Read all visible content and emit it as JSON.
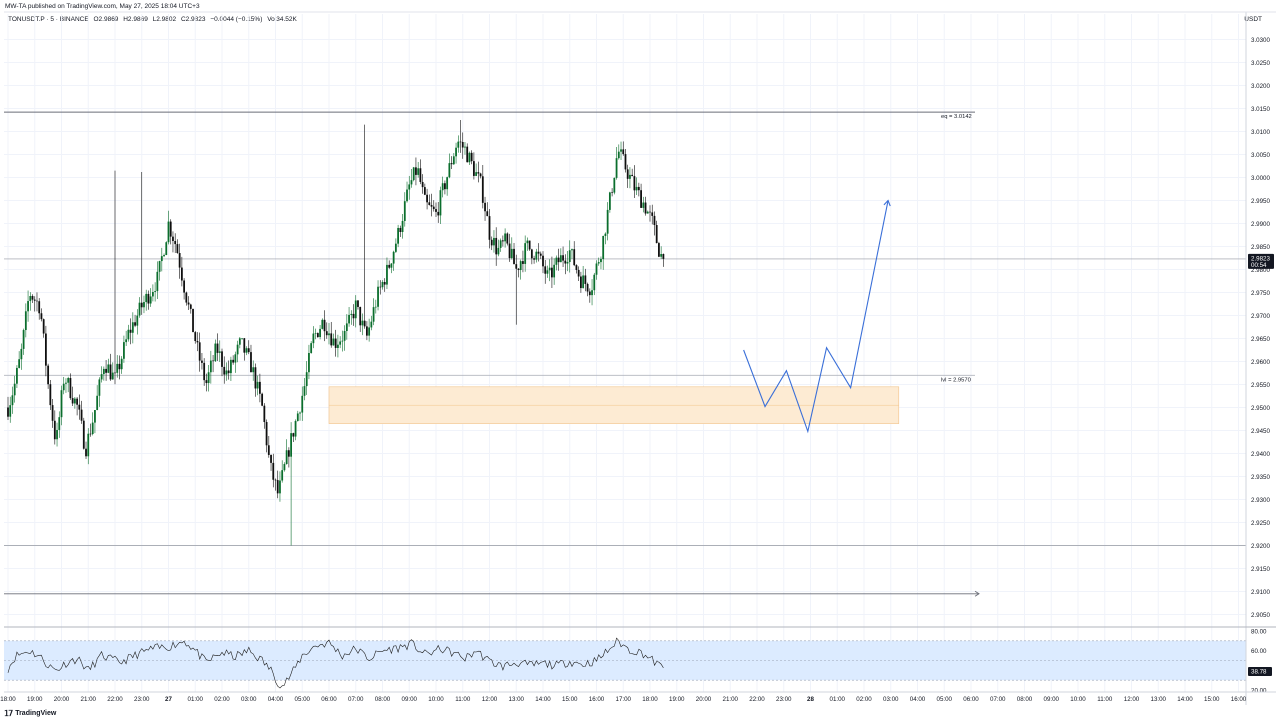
{
  "header": {
    "publisher": "MW-TA published on TradingView.com, May 27, 2025 18:04 UTC+3",
    "symbol": "TONUSDT.P · 5 · BINANCE",
    "open": "O2.9869",
    "high": "H2.9869",
    "low": "L2.9802",
    "close": "C2.9823",
    "change": "−0.0044 (−0.15%)",
    "volume": "Vol34.52K",
    "currency": "USDT"
  },
  "footer": {
    "logo_text": "TradingView"
  },
  "colors": {
    "up": "#0b6e2d",
    "down": "#0f0f0f",
    "rsi_band": "#dcebff",
    "projection": "#3a6fd8",
    "zone": "#fdebd3"
  },
  "chart_data": {
    "type": "candlestick",
    "price_axis": {
      "ticks": [
        "3.0300",
        "3.0250",
        "3.0200",
        "3.0150",
        "3.0100",
        "3.0050",
        "3.0000",
        "2.9950",
        "2.9900",
        "2.9850",
        "2.9800",
        "2.9750",
        "2.9700",
        "2.9650",
        "2.9600",
        "2.9550",
        "2.9500",
        "2.9450",
        "2.9400",
        "2.9350",
        "2.9300",
        "2.9250",
        "2.9200",
        "2.9150",
        "2.9100",
        "2.9050"
      ],
      "range": [
        2.9025,
        3.0325
      ],
      "current_price": "2.9823",
      "countdown": "00:54"
    },
    "time_axis": {
      "ticks": [
        "18:00",
        "19:00",
        "20:00",
        "21:00",
        "22:00",
        "23:00",
        "27",
        "01:00",
        "02:00",
        "03:00",
        "04:00",
        "05:00",
        "06:00",
        "07:00",
        "08:00",
        "09:00",
        "10:00",
        "11:00",
        "12:00",
        "13:00",
        "14:00",
        "15:00",
        "16:00",
        "17:00",
        "18:00",
        "19:00",
        "20:00",
        "21:00",
        "22:00",
        "23:00",
        "28",
        "01:00",
        "02:00",
        "03:00",
        "04:00",
        "05:00",
        "06:00",
        "07:00",
        "08:00",
        "09:00",
        "10:00",
        "11:00",
        "12:00",
        "13:00",
        "14:00",
        "15:00",
        "16:00"
      ],
      "bold": [
        "27",
        "28"
      ]
    },
    "price_keypoints": [
      [
        0,
        2.95
      ],
      [
        0.25,
        2.955
      ],
      [
        0.5,
        2.962
      ],
      [
        0.8,
        2.975
      ],
      [
        1.2,
        2.972
      ],
      [
        1.5,
        2.955
      ],
      [
        1.8,
        2.942
      ],
      [
        2.1,
        2.957
      ],
      [
        2.6,
        2.95
      ],
      [
        2.9,
        2.941
      ],
      [
        3.2,
        2.948
      ],
      [
        3.6,
        2.96
      ],
      [
        4.0,
        2.956
      ],
      [
        4.5,
        2.966
      ],
      [
        5.0,
        2.972
      ],
      [
        5.6,
        2.978
      ],
      [
        6.0,
        2.99
      ],
      [
        6.3,
        2.985
      ],
      [
        6.6,
        2.976
      ],
      [
        7.1,
        2.962
      ],
      [
        7.4,
        2.955
      ],
      [
        7.8,
        2.963
      ],
      [
        8.2,
        2.957
      ],
      [
        8.7,
        2.964
      ],
      [
        9.1,
        2.959
      ],
      [
        9.5,
        2.95
      ],
      [
        9.8,
        2.937
      ],
      [
        10.1,
        2.931
      ],
      [
        10.5,
        2.941
      ],
      [
        10.8,
        2.948
      ],
      [
        11.1,
        2.955
      ],
      [
        11.4,
        2.965
      ],
      [
        11.8,
        2.969
      ],
      [
        12.2,
        2.964
      ],
      [
        12.6,
        2.966
      ],
      [
        13.0,
        2.972
      ],
      [
        13.4,
        2.965
      ],
      [
        13.8,
        2.974
      ],
      [
        14.2,
        2.98
      ],
      [
        14.6,
        2.988
      ],
      [
        15.0,
        2.998
      ],
      [
        15.3,
        3.002
      ],
      [
        15.6,
        2.994
      ],
      [
        16.0,
        2.992
      ],
      [
        16.3,
        2.998
      ],
      [
        16.6,
        3.004
      ],
      [
        16.8,
        3.008
      ],
      [
        17.1,
        3.006
      ],
      [
        17.4,
        3.002
      ],
      [
        17.7,
        2.998
      ],
      [
        18.0,
        2.988
      ],
      [
        18.3,
        2.984
      ],
      [
        18.6,
        2.986
      ],
      [
        19.0,
        2.98
      ],
      [
        19.4,
        2.985
      ],
      [
        19.8,
        2.983
      ],
      [
        20.2,
        2.978
      ],
      [
        20.6,
        2.982
      ],
      [
        21.0,
        2.984
      ],
      [
        21.4,
        2.978
      ],
      [
        21.8,
        2.976
      ],
      [
        22.2,
        2.985
      ],
      [
        22.5,
        2.995
      ],
      [
        22.8,
        3.006
      ],
      [
        23.1,
        3.002
      ],
      [
        23.4,
        2.998
      ],
      [
        23.8,
        2.994
      ],
      [
        24.1,
        2.99
      ],
      [
        24.3,
        2.985
      ],
      [
        24.48,
        2.982
      ]
    ],
    "equilibrium": {
      "label": "eq = 3.0142",
      "value": 3.0142
    },
    "level": {
      "label": "lvl = 2.9570",
      "value": 2.957
    },
    "horizontal_lines": [
      2.9823,
      2.92
    ],
    "ray": {
      "value": 2.9095,
      "end_hour": 36.3
    },
    "demand_zone": {
      "from_hour": 12.0,
      "to_hour": 33.3,
      "top": 2.9545,
      "bottom": 2.9465,
      "mid": 2.9505
    },
    "projection_path": [
      [
        27.5,
        2.9625
      ],
      [
        28.3,
        2.9502
      ],
      [
        29.1,
        2.958
      ],
      [
        29.9,
        2.9448
      ],
      [
        30.6,
        2.963
      ],
      [
        31.5,
        2.9543
      ],
      [
        32.9,
        2.995
      ]
    ],
    "rsi": {
      "ticks": [
        "80.00",
        "60.00",
        "40.00",
        "20.00"
      ],
      "range": [
        20,
        80
      ],
      "band": [
        30,
        70
      ],
      "current": "38.78",
      "keypoints": [
        [
          0,
          42
        ],
        [
          0.3,
          55
        ],
        [
          0.8,
          60
        ],
        [
          1.2,
          54
        ],
        [
          1.5,
          45
        ],
        [
          1.8,
          40
        ],
        [
          2.2,
          48
        ],
        [
          2.6,
          52
        ],
        [
          3.0,
          40
        ],
        [
          3.5,
          55
        ],
        [
          4.2,
          48
        ],
        [
          4.8,
          56
        ],
        [
          5.4,
          62
        ],
        [
          6.0,
          64
        ],
        [
          6.6,
          70
        ],
        [
          7.0,
          60
        ],
        [
          7.4,
          48
        ],
        [
          8.0,
          58
        ],
        [
          8.5,
          54
        ],
        [
          9.0,
          60
        ],
        [
          9.5,
          50
        ],
        [
          9.9,
          38
        ],
        [
          10.2,
          22
        ],
        [
          10.6,
          36
        ],
        [
          11.0,
          55
        ],
        [
          11.5,
          65
        ],
        [
          12.0,
          68
        ],
        [
          12.5,
          55
        ],
        [
          13.0,
          62
        ],
        [
          13.5,
          52
        ],
        [
          14.0,
          60
        ],
        [
          14.6,
          63
        ],
        [
          15.1,
          67
        ],
        [
          15.6,
          56
        ],
        [
          16.2,
          62
        ],
        [
          16.6,
          58
        ],
        [
          17.1,
          52
        ],
        [
          17.5,
          60
        ],
        [
          18.0,
          49
        ],
        [
          18.5,
          44
        ],
        [
          19.0,
          48
        ],
        [
          19.5,
          45
        ],
        [
          20.0,
          47
        ],
        [
          20.5,
          45
        ],
        [
          21.0,
          49
        ],
        [
          21.5,
          46
        ],
        [
          22.0,
          50
        ],
        [
          22.5,
          62
        ],
        [
          22.8,
          70
        ],
        [
          23.2,
          61
        ],
        [
          23.7,
          58
        ],
        [
          24.1,
          50
        ],
        [
          24.48,
          42
        ]
      ]
    }
  }
}
